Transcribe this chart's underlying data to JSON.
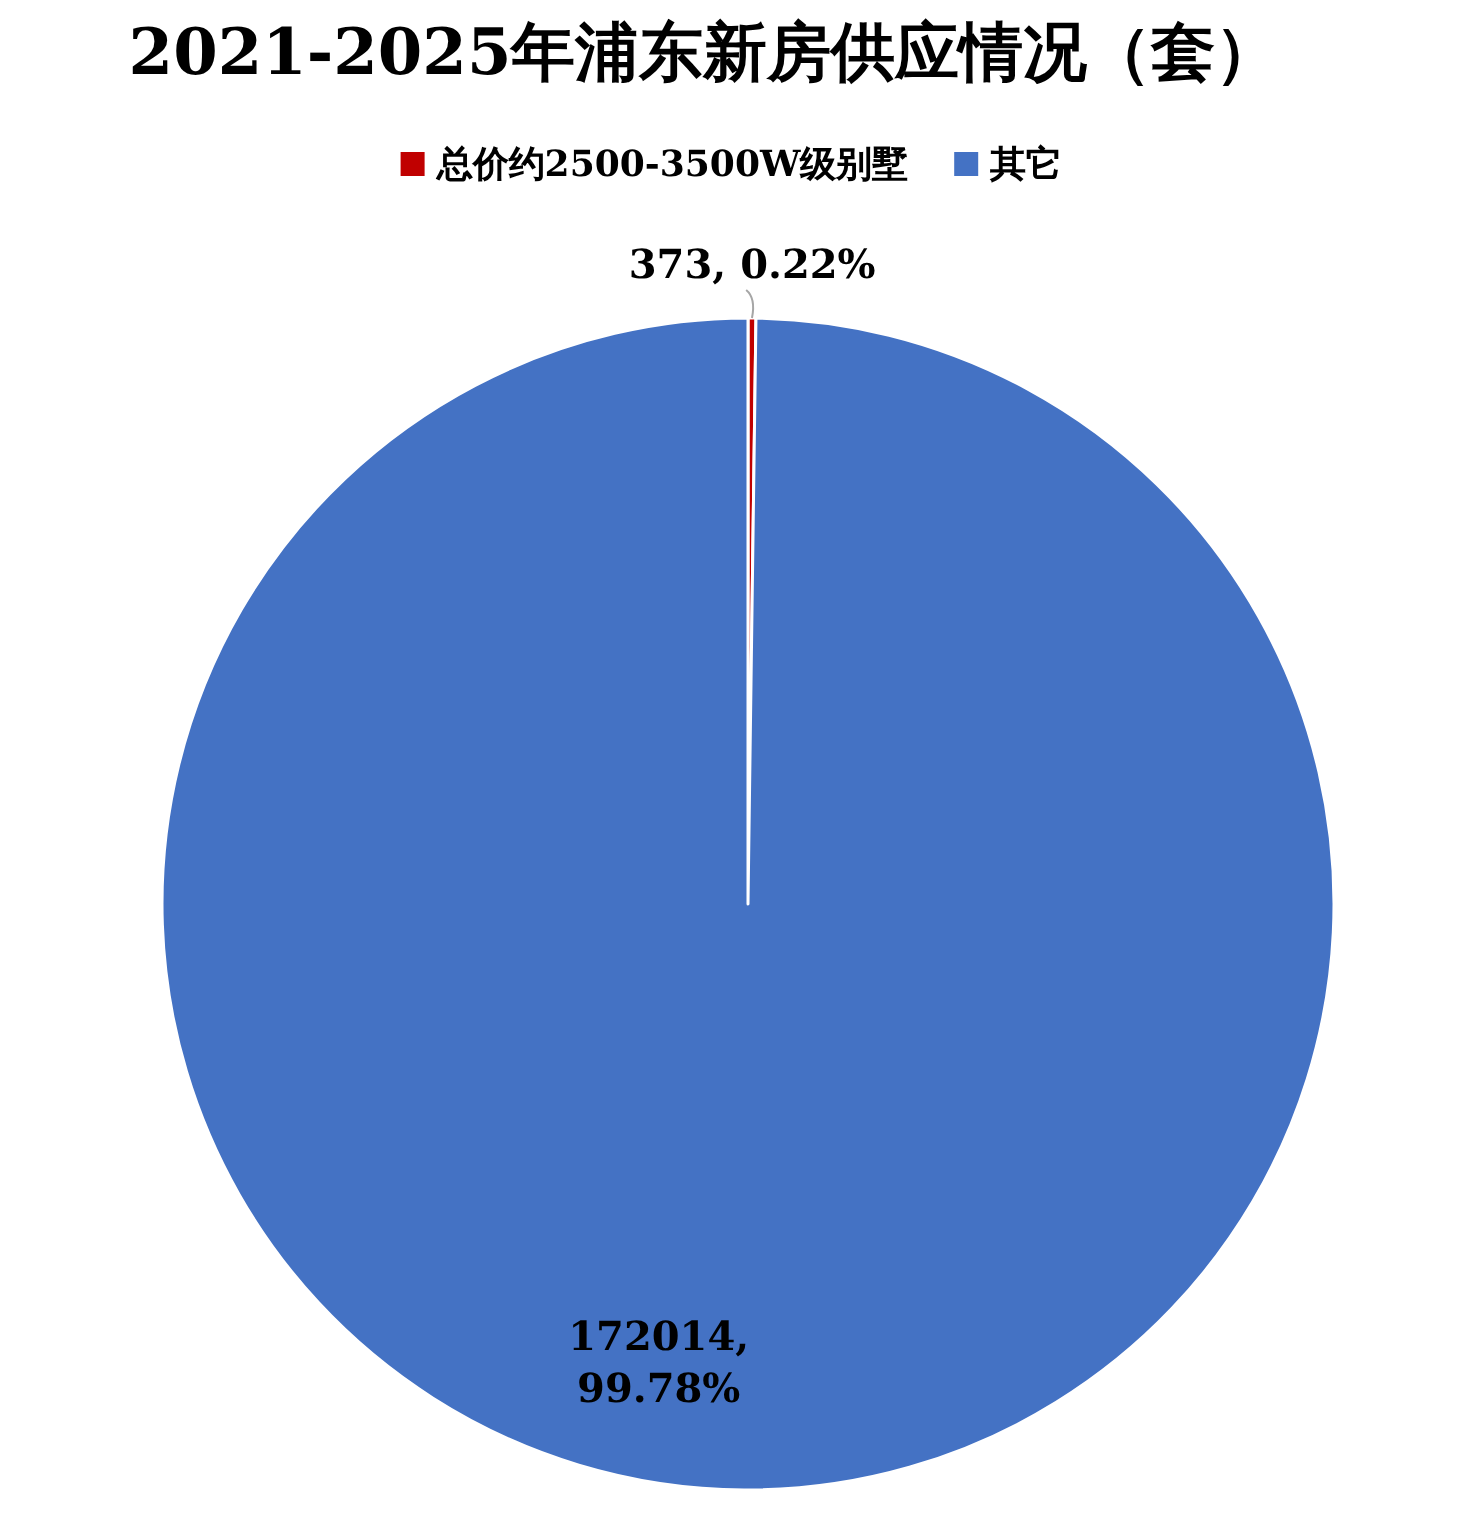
{
  "chart_data": {
    "type": "pie",
    "title": "2021-2025年浦东新房供应情况（套）",
    "categories": [
      "总价约2500-3500W级别墅",
      "其它"
    ],
    "values": [
      373,
      172014
    ],
    "colors": [
      "#c00000",
      "#4472c4"
    ],
    "value_labels": [
      "373, 0.22%",
      "172014, 99.78%"
    ],
    "legend": "top"
  }
}
